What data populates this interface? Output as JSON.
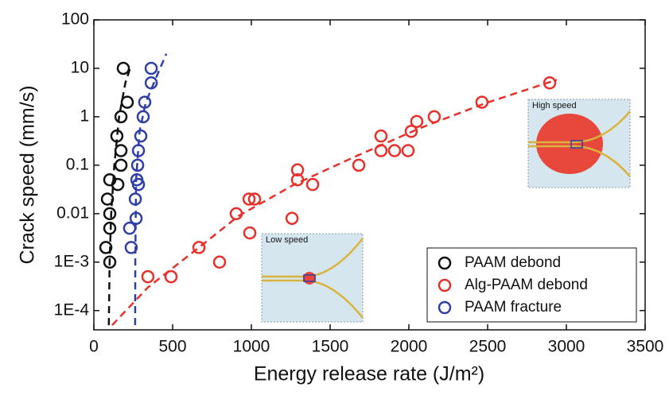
{
  "chart_data": {
    "type": "scatter",
    "x_label": "Energy release rate (J/m²)",
    "y_label": "Crack speed (mm/s)",
    "xlim": [
      0,
      3500
    ],
    "xticks": [
      0,
      500,
      1000,
      1500,
      2000,
      2500,
      3000,
      3500
    ],
    "ylim": [
      4e-05,
      100
    ],
    "y_log": true,
    "yticks": [
      100,
      10,
      1,
      0.1,
      0.01,
      {
        "value": 0.001,
        "label": "1E-3"
      },
      {
        "value": 0.0001,
        "label": "1E-4"
      }
    ],
    "legend": "lower right",
    "series": [
      {
        "name": "PAAM debond",
        "color": "#111111",
        "x": [
          187,
          212,
          172,
          146,
          172,
          172,
          152,
          101,
          86,
          101,
          101,
          76,
          101
        ],
        "values": [
          10,
          2,
          1,
          0.4,
          0.2,
          0.1,
          0.04,
          0.05,
          0.02,
          0.01,
          0.005,
          0.002,
          0.001
        ],
        "fit": {
          "x": [
            95,
            100,
            110,
            130,
            160,
            200,
            230
          ],
          "values": [
            5e-05,
            0.001,
            0.01,
            0.1,
            1,
            5,
            10
          ]
        }
      },
      {
        "name": "Alg-PAAM debond",
        "color": "#e8302a",
        "x": [
          343,
          490,
          667,
          798,
          904,
          990,
          985,
          1020,
          1258,
          1293,
          1293,
          1389,
          1682,
          1823,
          1823,
          1909,
          1995,
          2015,
          2050,
          2161,
          2464,
          2894
        ],
        "values": [
          0.0005,
          0.0005,
          0.002,
          0.001,
          0.01,
          0.004,
          0.02,
          0.02,
          0.008,
          0.08,
          0.05,
          0.04,
          0.1,
          0.4,
          0.2,
          0.2,
          0.2,
          0.5,
          0.8,
          1,
          2,
          5
        ],
        "fit": {
          "x": [
            116,
            343,
            667,
            919,
            1273,
            1677,
            2081,
            2485,
            2939
          ],
          "values": [
            5e-05,
            0.0003,
            0.002,
            0.009,
            0.04,
            0.16,
            0.6,
            1.9,
            5.8
          ]
        }
      },
      {
        "name": "PAAM fracture",
        "color": "#2f3fa8",
        "x": [
          364,
          364,
          323,
          313,
          298,
          283,
          278,
          273,
          283,
          263,
          268,
          227,
          237
        ],
        "values": [
          10,
          5,
          2,
          1,
          0.4,
          0.2,
          0.1,
          0.05,
          0.04,
          0.02,
          0.008,
          0.005,
          0.002
        ],
        "fit": {
          "x": [
            262,
            263,
            268,
            290,
            330,
            400,
            460
          ],
          "values": [
            5e-05,
            0.001,
            0.05,
            0.5,
            2,
            7,
            20
          ]
        }
      }
    ],
    "insets": [
      "High speed",
      "Low speed"
    ]
  }
}
